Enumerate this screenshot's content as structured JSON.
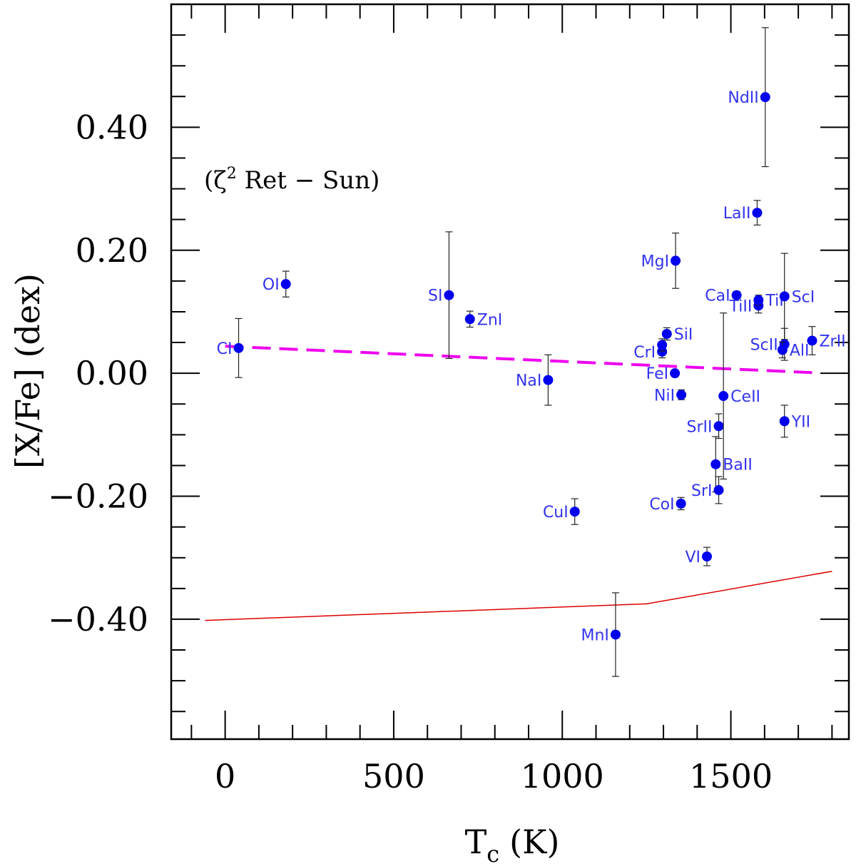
{
  "chart_data": {
    "type": "scatter",
    "xlabel": "T",
    "xlabel_sub": "c",
    "xlabel_unit": "(K)",
    "ylabel": "[X/Fe] (dex)",
    "annotation": {
      "prefix": "(ζ",
      "sup": "2",
      "suffix": " Ret − Sun)"
    },
    "xlim": [
      -160,
      1850
    ],
    "ylim": [
      -0.595,
      0.6
    ],
    "xticks": [
      0,
      500,
      1000,
      1500
    ],
    "xtick_labels": [
      "0",
      "500",
      "1000",
      "1500"
    ],
    "yticks": [
      0.4,
      0.2,
      0.0,
      -0.2,
      -0.4
    ],
    "ytick_labels": [
      "0.40",
      "0.20",
      "0.00",
      "−0.20",
      "−0.40"
    ],
    "colors": {
      "points": "#0000ee",
      "labels": "#3333ee",
      "fit": "#ee00ee",
      "model": "#dd0000",
      "errorbar": "#222222"
    },
    "points": [
      {
        "label": "CI",
        "x": 40,
        "y": 0.041,
        "err": 0.048,
        "side": "left"
      },
      {
        "label": "OI",
        "x": 180,
        "y": 0.145,
        "err": 0.021,
        "side": "left"
      },
      {
        "label": "SI",
        "x": 664,
        "y": 0.127,
        "err": 0.103,
        "side": "left"
      },
      {
        "label": "ZnI",
        "x": 726,
        "y": 0.088,
        "err": 0.013,
        "side": "right"
      },
      {
        "label": "NaI",
        "x": 958,
        "y": -0.011,
        "err": 0.041,
        "side": "left"
      },
      {
        "label": "CuI",
        "x": 1037,
        "y": -0.225,
        "err": 0.021,
        "side": "left"
      },
      {
        "label": "MnI",
        "x": 1158,
        "y": -0.425,
        "err": 0.068,
        "side": "left"
      },
      {
        "label": "CrI",
        "x": 1296,
        "y": 0.035,
        "err": 0.01,
        "side": "left"
      },
      {
        "label": "",
        "x": 1296,
        "y": 0.046,
        "err": 0.01,
        "side": "none"
      },
      {
        "label": "SiI",
        "x": 1310,
        "y": 0.064,
        "err": 0.01,
        "side": "right"
      },
      {
        "label": "MgI",
        "x": 1336,
        "y": 0.183,
        "err": 0.045,
        "side": "left"
      },
      {
        "label": "FeI",
        "x": 1334,
        "y": 0.0,
        "err": 0.005,
        "side": "left"
      },
      {
        "label": "NiI",
        "x": 1353,
        "y": -0.035,
        "err": 0.008,
        "side": "left"
      },
      {
        "label": "CoI",
        "x": 1352,
        "y": -0.212,
        "err": 0.01,
        "side": "left"
      },
      {
        "label": "VI",
        "x": 1429,
        "y": -0.298,
        "err": 0.015,
        "side": "left"
      },
      {
        "label": "SrII",
        "x": 1464,
        "y": -0.086,
        "err": 0.02,
        "side": "left"
      },
      {
        "label": "BaII",
        "x": 1455,
        "y": -0.148,
        "err": 0.045,
        "side": "right"
      },
      {
        "label": "SrI",
        "x": 1464,
        "y": -0.19,
        "err": 0.022,
        "side": "left"
      },
      {
        "label": "CeII",
        "x": 1478,
        "y": -0.037,
        "err": 0.135,
        "side": "right"
      },
      {
        "label": "CaI",
        "x": 1517,
        "y": 0.127,
        "err": 0.006,
        "side": "left"
      },
      {
        "label": "TiII",
        "x": 1582,
        "y": 0.11,
        "err": 0.012,
        "side": "left"
      },
      {
        "label": "TiI",
        "x": 1582,
        "y": 0.119,
        "err": 0.008,
        "side": "right"
      },
      {
        "label": "LaII",
        "x": 1578,
        "y": 0.261,
        "err": 0.02,
        "side": "left"
      },
      {
        "label": "NdII",
        "x": 1602,
        "y": 0.449,
        "err": 0.113,
        "side": "left"
      },
      {
        "label": "ScI",
        "x": 1659,
        "y": 0.125,
        "err": 0.07,
        "side": "right"
      },
      {
        "label": "ScII",
        "x": 1659,
        "y": 0.047,
        "err": 0.026,
        "side": "left"
      },
      {
        "label": "AlI",
        "x": 1653,
        "y": 0.038,
        "err": 0.013,
        "side": "right"
      },
      {
        "label": "YII",
        "x": 1659,
        "y": -0.078,
        "err": 0.026,
        "side": "right"
      },
      {
        "label": "ZrII",
        "x": 1741,
        "y": 0.053,
        "err": 0.023,
        "side": "right"
      }
    ],
    "fit_line": {
      "x": [
        0,
        1741
      ],
      "y": [
        0.044,
        0.001
      ],
      "style": "dashed"
    },
    "model_curve": {
      "x": [
        -60,
        1250,
        1800
      ],
      "y": [
        -0.402,
        -0.375,
        -0.322
      ],
      "style": "solid"
    }
  }
}
